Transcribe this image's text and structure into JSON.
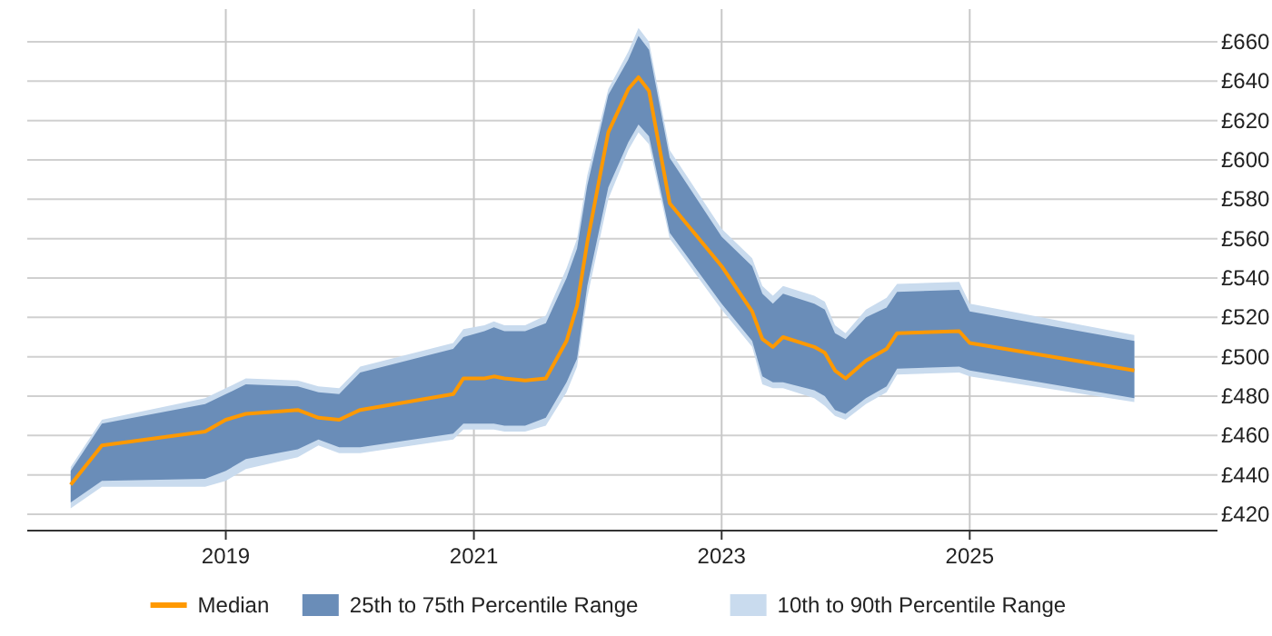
{
  "chart_data": {
    "type": "line",
    "x": [
      "2017-10",
      "2018-01",
      "2018-11",
      "2019-01",
      "2019-03",
      "2019-08",
      "2019-10",
      "2019-12",
      "2020-02",
      "2020-11",
      "2020-12",
      "2021-02",
      "2021-03",
      "2021-04",
      "2021-06",
      "2021-08",
      "2021-10",
      "2021-11",
      "2021-12",
      "2022-02",
      "2022-04",
      "2022-05",
      "2022-06",
      "2022-08",
      "2023-01",
      "2023-04",
      "2023-05",
      "2023-06",
      "2023-07",
      "2023-10",
      "2023-11",
      "2023-12",
      "2024-01",
      "2024-03",
      "2024-05",
      "2024-06",
      "2024-12",
      "2025-01",
      "2026-05"
    ],
    "series": [
      {
        "name": "Median",
        "color": "#ff9900",
        "values": [
          435,
          455,
          462,
          468,
          471,
          473,
          469,
          468,
          473,
          481,
          489,
          489,
          490,
          489,
          488,
          489,
          508,
          526,
          558,
          614,
          636,
          642,
          635,
          578,
          546,
          523,
          509,
          505,
          510,
          505,
          502,
          493,
          489,
          498,
          504,
          512,
          513,
          507,
          493
        ]
      },
      {
        "name": "25th to 75th Percentile Range",
        "type": "area",
        "color": "#6a8db8",
        "values": [
          null,
          null,
          null,
          null,
          null,
          null,
          null,
          null,
          null,
          null,
          null,
          null,
          null,
          null,
          null,
          null,
          null,
          null,
          null,
          null,
          null,
          null,
          null,
          null,
          null,
          null,
          null,
          null,
          null,
          null,
          null,
          null,
          null,
          null,
          null,
          null,
          null,
          null,
          null
        ],
        "lower": [
          426,
          437,
          438,
          442,
          448,
          453,
          458,
          454,
          454,
          461,
          466,
          466,
          466,
          465,
          465,
          469,
          487,
          499,
          536,
          586,
          609,
          618,
          612,
          563,
          527,
          508,
          490,
          487,
          487,
          483,
          480,
          473,
          471,
          479,
          485,
          494,
          495,
          493,
          479
        ],
        "upper": [
          442,
          466,
          476,
          481,
          486,
          485,
          482,
          481,
          492,
          504,
          510,
          513,
          515,
          513,
          513,
          517,
          540,
          555,
          587,
          633,
          651,
          663,
          656,
          601,
          561,
          546,
          532,
          527,
          532,
          527,
          524,
          512,
          509,
          520,
          525,
          533,
          534,
          523,
          508
        ]
      },
      {
        "name": "10th to 90th Percentile Range",
        "type": "area",
        "color": "#c9dbee",
        "values": [
          null,
          null,
          null,
          null,
          null,
          null,
          null,
          null,
          null,
          null,
          null,
          null,
          null,
          null,
          null,
          null,
          null,
          null,
          null,
          null,
          null,
          null,
          null,
          null,
          null,
          null,
          null,
          null,
          null,
          null,
          null,
          null,
          null,
          null,
          null,
          null,
          null,
          null,
          null
        ],
        "lower": [
          423,
          434,
          434,
          437,
          443,
          449,
          455,
          451,
          451,
          458,
          463,
          463,
          463,
          462,
          462,
          465,
          482,
          495,
          530,
          580,
          605,
          614,
          608,
          560,
          524,
          505,
          486,
          484,
          484,
          479,
          475,
          470,
          468,
          476,
          482,
          491,
          492,
          490,
          477
        ],
        "upper": [
          444,
          468,
          479,
          484,
          489,
          488,
          485,
          484,
          495,
          507,
          514,
          516,
          518,
          516,
          516,
          521,
          545,
          560,
          592,
          636,
          655,
          667,
          660,
          605,
          565,
          550,
          536,
          531,
          536,
          531,
          528,
          516,
          512,
          524,
          530,
          537,
          538,
          527,
          511
        ]
      }
    ],
    "xlim": [
      "2017-05-26",
      "2027-01-01"
    ],
    "xticks": [
      "2019",
      "2021",
      "2023",
      "2025"
    ],
    "ylim": [
      411.7,
      676.6
    ],
    "yticks": [
      {
        "value": 420,
        "label": "£420"
      },
      {
        "value": 440,
        "label": "£440"
      },
      {
        "value": 460,
        "label": "£460"
      },
      {
        "value": 480,
        "label": "£480"
      },
      {
        "value": 500,
        "label": "£500"
      },
      {
        "value": 520,
        "label": "£520"
      },
      {
        "value": 540,
        "label": "£540"
      },
      {
        "value": 560,
        "label": "£560"
      },
      {
        "value": 580,
        "label": "£580"
      },
      {
        "value": 600,
        "label": "£600"
      },
      {
        "value": 620,
        "label": "£620"
      },
      {
        "value": 640,
        "label": "£640"
      },
      {
        "value": 660,
        "label": "£660"
      }
    ],
    "grid": true,
    "legend": "bottom",
    "marker": "none",
    "line_style": "solid"
  }
}
